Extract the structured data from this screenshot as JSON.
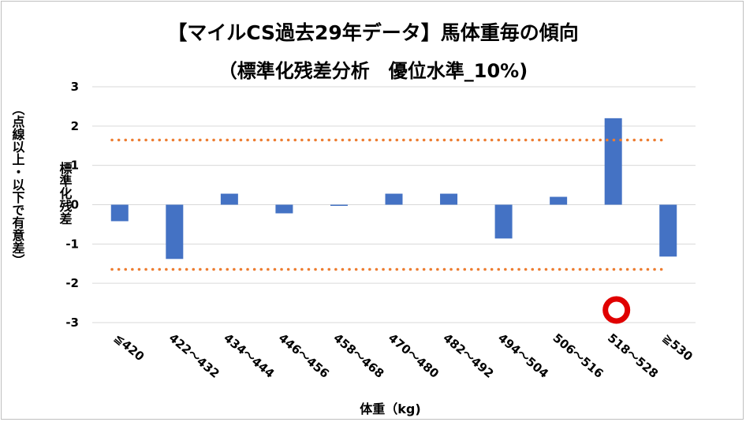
{
  "chart_data": {
    "type": "bar",
    "title": "【マイルCS過去29年データ】馬体重毎の傾向",
    "subtitle": "（標準化残差分析　優位水準_10%)",
    "ylabel": "標準化残差",
    "ylabel_note": "（点線以上・以下で有意差）",
    "xlabel": "体重（kg)",
    "categories": [
      "≦420",
      "422～432",
      "434～444",
      "446～456",
      "458～468",
      "470～480",
      "482～492",
      "494～504",
      "506～516",
      "518～528",
      "≧530"
    ],
    "values": [
      -0.42,
      -1.38,
      0.28,
      -0.22,
      -0.03,
      0.28,
      0.28,
      -0.86,
      0.2,
      2.2,
      -1.32
    ],
    "ylim": [
      -3,
      3
    ],
    "yticks": [
      "-3",
      "-2",
      "-1",
      "0",
      "1",
      "2",
      "3"
    ],
    "threshold_upper": 1.645,
    "threshold_lower": -1.645,
    "highlight_category": "518～528",
    "grid": true,
    "colors": {
      "bar": "#4472c4",
      "threshold": "#ed7d31",
      "marker": "#e00000",
      "grid": "#d9d9d9"
    }
  }
}
